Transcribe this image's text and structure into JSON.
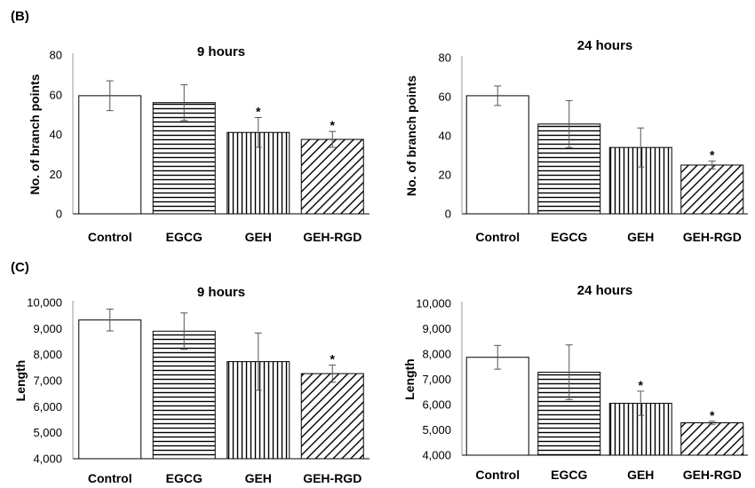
{
  "panels": [
    {
      "label": "(B)"
    },
    {
      "label": "(C)"
    }
  ],
  "pattern_names": [
    "open",
    "horizontal-stripes",
    "vertical-stripes",
    "diagonal-stripes"
  ],
  "chart_data": [
    {
      "type": "bar",
      "panel": "(B)",
      "title": "9 hours",
      "ylabel": "No. of branch points",
      "xlabel": "",
      "categories": [
        "Control",
        "EGCG",
        "GEH",
        "GEH-RGD"
      ],
      "values": [
        59.5,
        56,
        41,
        37.5
      ],
      "errors": [
        7.5,
        9,
        7.5,
        4
      ],
      "significant": [
        false,
        false,
        true,
        true
      ],
      "significance_marker": "*",
      "ylim": [
        0,
        80
      ],
      "yticks": [
        0,
        20,
        40,
        60,
        80
      ],
      "ytick_labels": [
        "0",
        "20",
        "40",
        "60",
        "80"
      ],
      "grid": false,
      "legend": "none"
    },
    {
      "type": "bar",
      "panel": "(B)",
      "title": "24 hours",
      "ylabel": "No. of branch points",
      "xlabel": "",
      "categories": [
        "Control",
        "EGCG",
        "GEH",
        "GEH-RGD"
      ],
      "values": [
        60.5,
        46,
        34,
        25
      ],
      "errors": [
        5,
        12,
        10,
        2
      ],
      "significant": [
        false,
        false,
        false,
        true
      ],
      "significance_marker": "*",
      "ylim": [
        0,
        80
      ],
      "yticks": [
        0,
        20,
        40,
        60,
        80
      ],
      "ytick_labels": [
        "0",
        "20",
        "40",
        "60",
        "80"
      ],
      "grid": false,
      "legend": "none"
    },
    {
      "type": "bar",
      "panel": "(C)",
      "title": "9 hours",
      "ylabel": "Length",
      "xlabel": "",
      "categories": [
        "Control",
        "EGCG",
        "GEH",
        "GEH-RGD"
      ],
      "values": [
        9330,
        8900,
        7730,
        7270
      ],
      "errors": [
        420,
        700,
        1100,
        330
      ],
      "significant": [
        false,
        false,
        false,
        true
      ],
      "significance_marker": "*",
      "ylim": [
        4000,
        10000
      ],
      "yticks": [
        4000,
        5000,
        6000,
        7000,
        8000,
        9000,
        10000
      ],
      "ytick_labels": [
        "4,000",
        "5,000",
        "6,000",
        "7,000",
        "8,000",
        "9,000",
        "10,000"
      ],
      "grid": false,
      "legend": "none"
    },
    {
      "type": "bar",
      "panel": "(C)",
      "title": "24 hours",
      "ylabel": "Length",
      "xlabel": "",
      "categories": [
        "Control",
        "EGCG",
        "GEH",
        "GEH-RGD"
      ],
      "values": [
        7870,
        7280,
        6050,
        5280
      ],
      "errors": [
        470,
        1080,
        480,
        60
      ],
      "significant": [
        false,
        false,
        true,
        true
      ],
      "significance_marker": "*",
      "ylim": [
        4000,
        10000
      ],
      "yticks": [
        4000,
        5000,
        6000,
        7000,
        8000,
        9000,
        10000
      ],
      "ytick_labels": [
        "4,000",
        "5,000",
        "6,000",
        "7,000",
        "8,000",
        "9,000",
        "10,000"
      ],
      "grid": false,
      "legend": "none"
    }
  ]
}
